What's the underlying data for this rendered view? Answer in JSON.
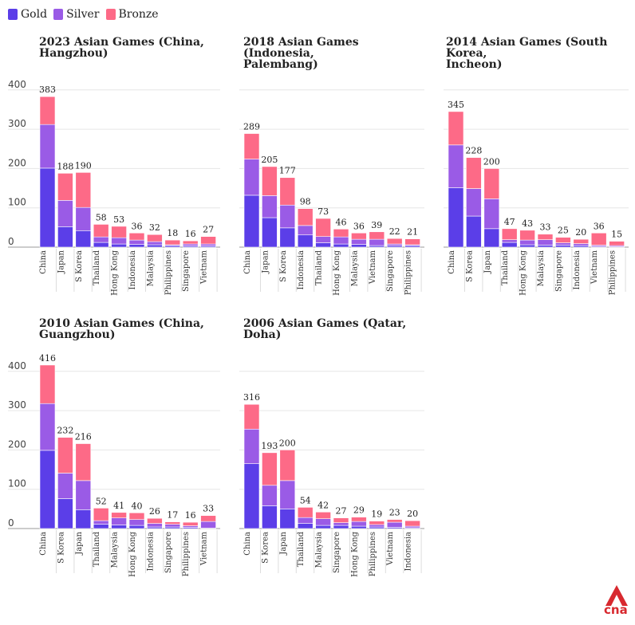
{
  "legend": [
    {
      "label": "Gold",
      "color": "#5b3ee8"
    },
    {
      "label": "Silver",
      "color": "#9a5be6"
    },
    {
      "label": "Bronze",
      "color": "#fd6a87"
    }
  ],
  "logo": {
    "text": "cna",
    "color": "#d8292f"
  },
  "chart_data": [
    {
      "type": "bar",
      "stacked": true,
      "title": "2023 Asian Games (China,\nHangzhou)",
      "ylim": [
        0,
        420
      ],
      "yticks": [
        0,
        100,
        200,
        300,
        400
      ],
      "categories": [
        "China",
        "Japan",
        "S Korea",
        "Thailand",
        "Hong Kong",
        "Indonesia",
        "Malaysia",
        "Philippines",
        "Singapore",
        "Vietnam"
      ],
      "series": [
        {
          "name": "Gold",
          "values": [
            201,
            52,
            42,
            12,
            8,
            7,
            6,
            4,
            3,
            3
          ]
        },
        {
          "name": "Silver",
          "values": [
            111,
            67,
            59,
            14,
            16,
            11,
            8,
            2,
            5,
            5
          ]
        },
        {
          "name": "Bronze",
          "values": [
            71,
            69,
            89,
            32,
            29,
            18,
            18,
            12,
            8,
            19
          ]
        }
      ],
      "totals": [
        383,
        188,
        190,
        58,
        53,
        36,
        32,
        18,
        16,
        27
      ]
    },
    {
      "type": "bar",
      "stacked": true,
      "title": "2018 Asian Games (Indonesia,\nPalembang)",
      "ylim": [
        0,
        420
      ],
      "yticks": [
        0,
        100,
        200,
        300,
        400
      ],
      "categories": [
        "China",
        "Japan",
        "S Korea",
        "Indonesia",
        "Thailand",
        "Hong Kong",
        "Malaysia",
        "Vietnam",
        "Singapore",
        "Philippines"
      ],
      "series": [
        {
          "name": "Gold",
          "values": [
            132,
            75,
            49,
            31,
            11,
            8,
            7,
            4,
            4,
            4
          ]
        },
        {
          "name": "Silver",
          "values": [
            92,
            56,
            58,
            24,
            16,
            18,
            13,
            16,
            4,
            2
          ]
        },
        {
          "name": "Bronze",
          "values": [
            65,
            74,
            70,
            43,
            46,
            20,
            16,
            19,
            14,
            15
          ]
        }
      ],
      "totals": [
        289,
        205,
        177,
        98,
        73,
        46,
        36,
        39,
        22,
        21
      ]
    },
    {
      "type": "bar",
      "stacked": true,
      "title": "2014 Asian Games (South Korea,\nIncheon)",
      "ylim": [
        0,
        420
      ],
      "yticks": [
        0,
        100,
        200,
        300,
        400
      ],
      "categories": [
        "China",
        "S Korea",
        "Japan",
        "Thailand",
        "Hong Kong",
        "Malaysia",
        "Singapore",
        "Indonesia",
        "Vietnam",
        "Philippines"
      ],
      "series": [
        {
          "name": "Gold",
          "values": [
            151,
            79,
            47,
            12,
            6,
            5,
            5,
            4,
            2,
            1
          ]
        },
        {
          "name": "Silver",
          "values": [
            109,
            70,
            76,
            7,
            12,
            14,
            6,
            5,
            3,
            3
          ]
        },
        {
          "name": "Bronze",
          "values": [
            85,
            79,
            77,
            28,
            25,
            14,
            14,
            11,
            31,
            11
          ]
        }
      ],
      "totals": [
        345,
        228,
        200,
        47,
        43,
        33,
        25,
        20,
        36,
        15
      ]
    },
    {
      "type": "bar",
      "stacked": true,
      "title": "2010 Asian Games (China,\nGuangzhou)",
      "ylim": [
        0,
        420
      ],
      "yticks": [
        0,
        100,
        200,
        300,
        400
      ],
      "categories": [
        "China",
        "S Korea",
        "Japan",
        "Thailand",
        "Malaysia",
        "Hong Kong",
        "Indonesia",
        "Singapore",
        "Philippines",
        "Vietnam"
      ],
      "series": [
        {
          "name": "Gold",
          "values": [
            199,
            76,
            48,
            11,
            9,
            8,
            4,
            4,
            3,
            1
          ]
        },
        {
          "name": "Silver",
          "values": [
            119,
            65,
            74,
            9,
            18,
            15,
            9,
            7,
            4,
            17
          ]
        },
        {
          "name": "Bronze",
          "values": [
            98,
            91,
            94,
            32,
            14,
            17,
            13,
            6,
            9,
            15
          ]
        }
      ],
      "totals": [
        416,
        232,
        216,
        52,
        41,
        40,
        26,
        17,
        16,
        33
      ]
    },
    {
      "type": "bar",
      "stacked": true,
      "title": "2006 Asian Games (Qatar,\nDoha)",
      "ylim": [
        0,
        420
      ],
      "yticks": [
        0,
        100,
        200,
        300,
        400
      ],
      "categories": [
        "China",
        "S Korea",
        "Japan",
        "Thailand",
        "Malaysia",
        "Singapore",
        "Hong Kong",
        "Philippines",
        "Vietnam",
        "Indonesia"
      ],
      "series": [
        {
          "name": "Gold",
          "values": [
            165,
            58,
            50,
            13,
            8,
            8,
            6,
            4,
            3,
            2
          ]
        },
        {
          "name": "Silver",
          "values": [
            88,
            52,
            72,
            15,
            17,
            7,
            12,
            6,
            13,
            4
          ]
        },
        {
          "name": "Bronze",
          "values": [
            63,
            83,
            78,
            26,
            17,
            12,
            11,
            9,
            7,
            14
          ]
        }
      ],
      "totals": [
        316,
        193,
        200,
        54,
        42,
        27,
        29,
        19,
        23,
        20
      ]
    }
  ]
}
